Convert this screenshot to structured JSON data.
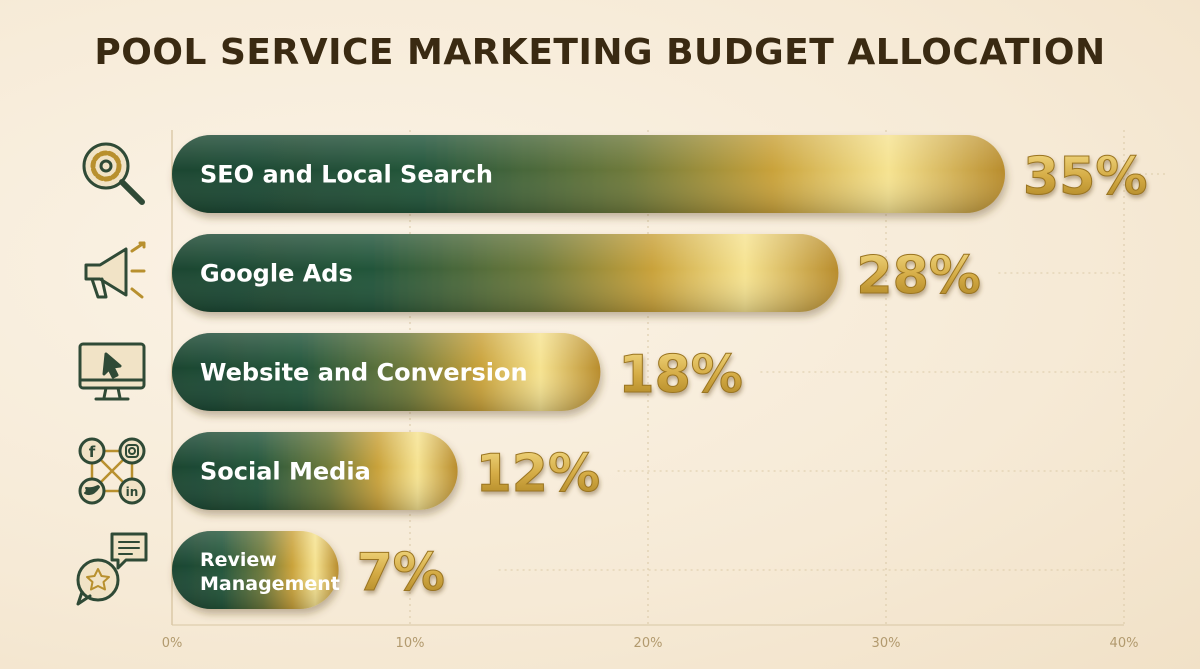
{
  "chart_data": {
    "type": "bar",
    "orientation": "horizontal",
    "title": "POOL SERVICE MARKETING BUDGET ALLOCATION",
    "categories": [
      "SEO and Local Search",
      "Google Ads",
      "Website and Conversion",
      "Social Media",
      "Review Management"
    ],
    "values": [
      35,
      28,
      18,
      12,
      7
    ],
    "value_labels": [
      "35%",
      "28%",
      "18%",
      "12%",
      "7%"
    ],
    "icons": [
      "gear-magnifier-icon",
      "megaphone-icon",
      "monitor-cursor-icon",
      "social-network-icon",
      "review-chat-star-icon"
    ],
    "xlim": [
      0,
      40
    ],
    "x_ticks": [
      0,
      10,
      20,
      30,
      40
    ],
    "x_tick_labels": [
      "0%",
      "10%",
      "20%",
      "30%",
      "40%"
    ],
    "xlabel": "",
    "ylabel": "",
    "grid": true,
    "legend": "none",
    "colors": {
      "bar_dark": "#1f4a34",
      "bar_gold": "#c9a23a",
      "bar_highlight": "#f5e08a",
      "icon": "#2f4a36",
      "icon_accent": "#b8902e",
      "title": "#3a2a12"
    }
  }
}
